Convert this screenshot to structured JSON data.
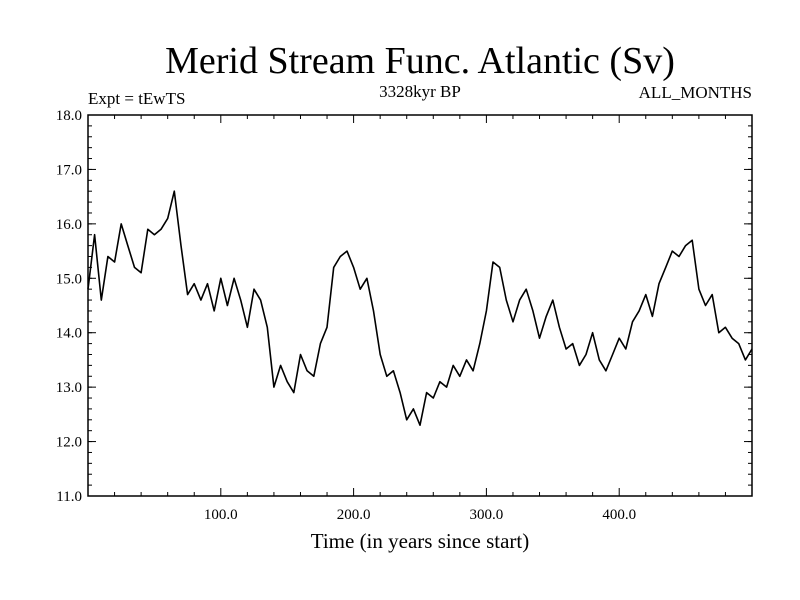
{
  "chart_data": {
    "type": "line",
    "title": "Merid Stream Func. Atlantic (Sv)",
    "subtitle": "3328kyr BP",
    "left_label": "Expt = tEwTS",
    "right_label": "ALL_MONTHS",
    "xlabel": "Time (in years since start)",
    "ylabel": "",
    "xlim": [
      0,
      500
    ],
    "ylim": [
      11.0,
      18.0
    ],
    "x_ticks": [
      100,
      200,
      300,
      400
    ],
    "x_tick_labels": [
      "100.0",
      "200.0",
      "300.0",
      "400.0"
    ],
    "y_ticks": [
      11,
      12,
      13,
      14,
      15,
      16,
      17,
      18
    ],
    "y_tick_labels": [
      "11.0",
      "12.0",
      "13.0",
      "14.0",
      "15.0",
      "16.0",
      "17.0",
      "18.0"
    ],
    "line_color": "#000000",
    "series": [
      {
        "name": "Merid Stream Func. Atlantic",
        "x": [
          0,
          5,
          10,
          15,
          20,
          25,
          30,
          35,
          40,
          45,
          50,
          55,
          60,
          65,
          70,
          75,
          80,
          85,
          90,
          95,
          100,
          105,
          110,
          115,
          120,
          125,
          130,
          135,
          140,
          145,
          150,
          155,
          160,
          165,
          170,
          175,
          180,
          185,
          190,
          195,
          200,
          205,
          210,
          215,
          220,
          225,
          230,
          235,
          240,
          245,
          250,
          255,
          260,
          265,
          270,
          275,
          280,
          285,
          290,
          295,
          300,
          305,
          310,
          315,
          320,
          325,
          330,
          335,
          340,
          345,
          350,
          355,
          360,
          365,
          370,
          375,
          380,
          385,
          390,
          395,
          400,
          405,
          410,
          415,
          420,
          425,
          430,
          435,
          440,
          445,
          450,
          455,
          460,
          465,
          470,
          475,
          480,
          485,
          490,
          495,
          500
        ],
        "values": [
          14.8,
          15.8,
          14.6,
          15.4,
          15.3,
          16.0,
          15.6,
          15.2,
          15.1,
          15.9,
          15.8,
          15.9,
          16.1,
          16.6,
          15.6,
          14.7,
          14.9,
          14.6,
          14.9,
          14.4,
          15.0,
          14.5,
          15.0,
          14.6,
          14.1,
          14.8,
          14.6,
          14.1,
          13.0,
          13.4,
          13.1,
          12.9,
          13.6,
          13.3,
          13.2,
          13.8,
          14.1,
          15.2,
          15.4,
          15.5,
          15.2,
          14.8,
          15.0,
          14.4,
          13.6,
          13.2,
          13.3,
          12.9,
          12.4,
          12.6,
          12.3,
          12.9,
          12.8,
          13.1,
          13.0,
          13.4,
          13.2,
          13.5,
          13.3,
          13.8,
          14.4,
          15.3,
          15.2,
          14.6,
          14.2,
          14.6,
          14.8,
          14.4,
          13.9,
          14.3,
          14.6,
          14.1,
          13.7,
          13.8,
          13.4,
          13.6,
          14.0,
          13.5,
          13.3,
          13.6,
          13.9,
          13.7,
          14.2,
          14.4,
          14.7,
          14.3,
          14.9,
          15.2,
          15.5,
          15.4,
          15.6,
          15.7,
          14.8,
          14.5,
          14.7,
          14.0,
          14.1,
          13.9,
          13.8,
          13.5,
          13.7
        ]
      }
    ]
  }
}
